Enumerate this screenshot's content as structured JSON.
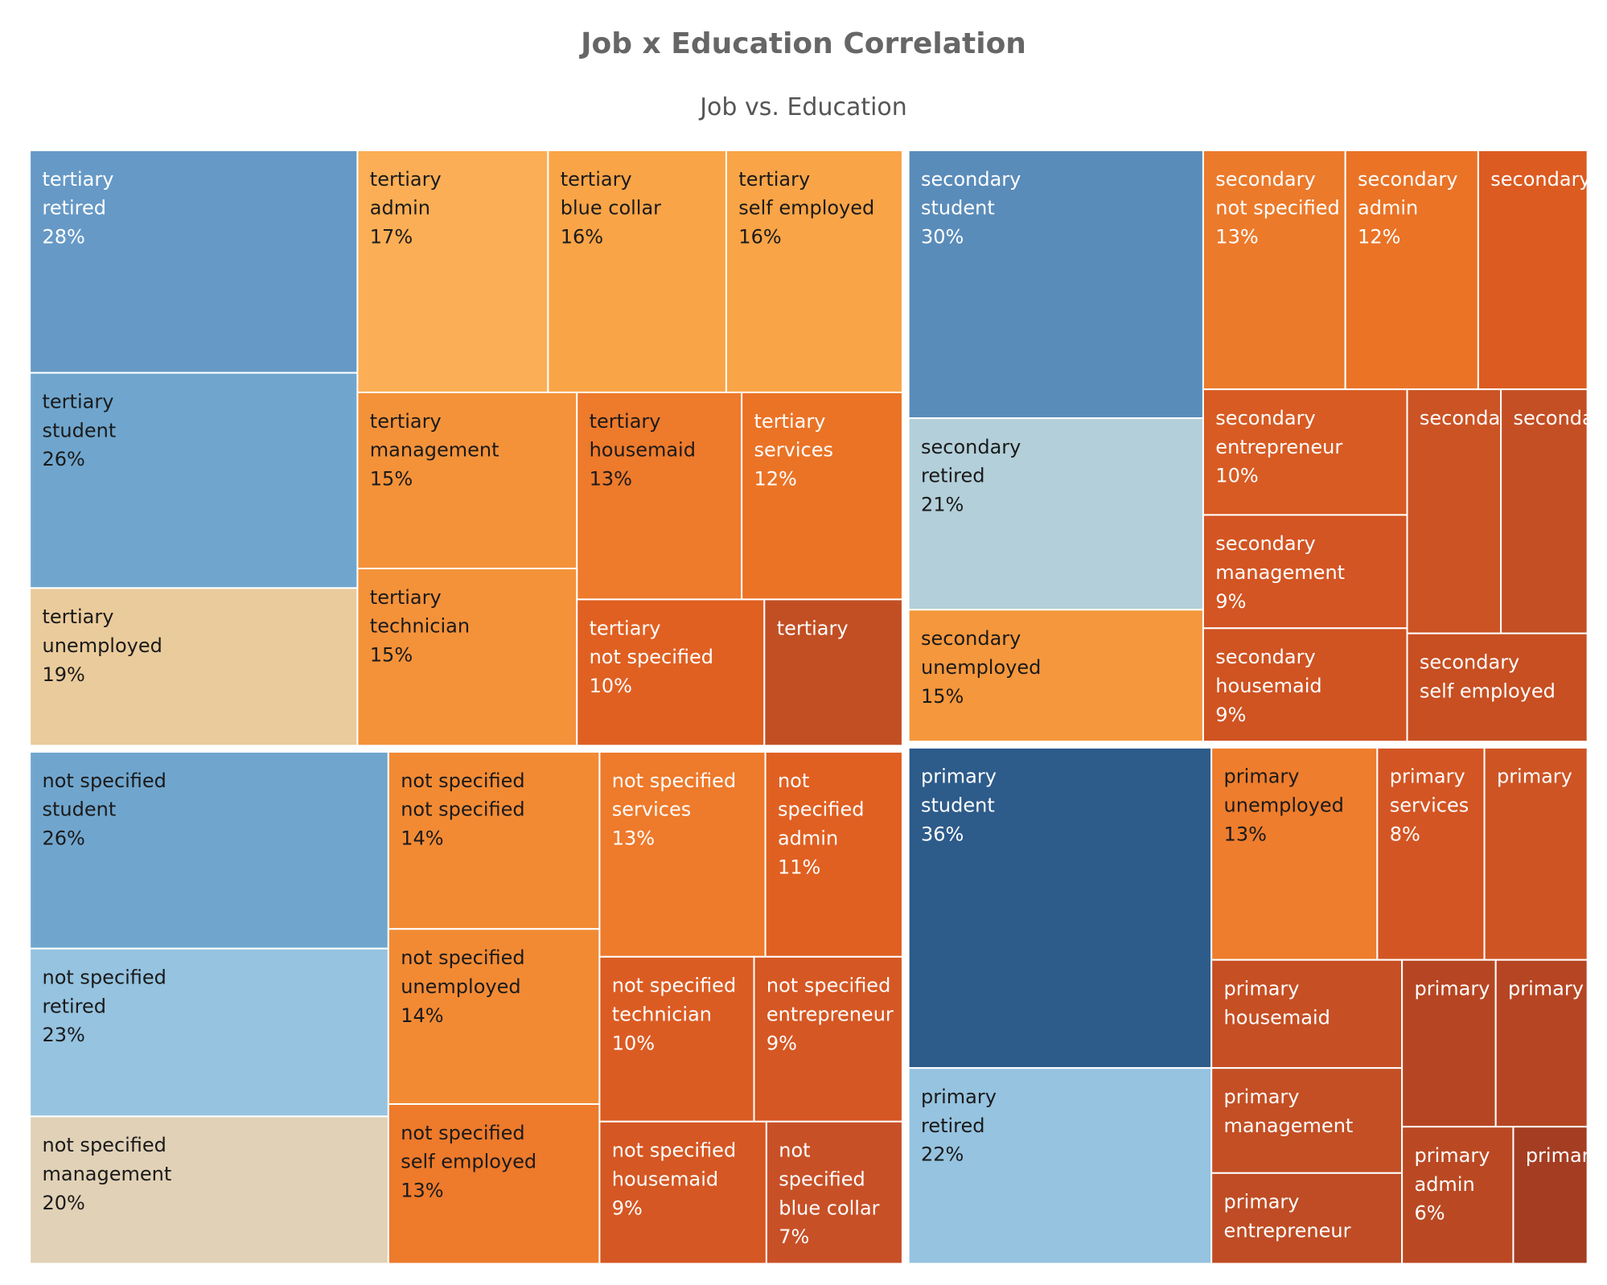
{
  "chart_data": {
    "type": "treemap",
    "title": "Job x Education Correlation",
    "subtitle": "Job vs. Education",
    "groups": [
      {
        "education": "tertiary",
        "cells": [
          {
            "job": "retired",
            "pct": "28%",
            "color": "#6699C6",
            "text": "#FFFFFF"
          },
          {
            "job": "student",
            "pct": "26%",
            "color": "#70A6CE",
            "text": "#1A1A1A"
          },
          {
            "job": "unemployed",
            "pct": "19%",
            "color": "#EACB9B",
            "text": "#1A1A1A"
          },
          {
            "job": "admin",
            "pct": "17%",
            "color": "#FBAE55",
            "text": "#1A1A1A"
          },
          {
            "job": "blue collar",
            "pct": "16%",
            "color": "#F9A447",
            "text": "#1A1A1A"
          },
          {
            "job": "self employed",
            "pct": "16%",
            "color": "#F9A447",
            "text": "#1A1A1A"
          },
          {
            "job": "management",
            "pct": "15%",
            "color": "#F4923A",
            "text": "#1A1A1A"
          },
          {
            "job": "housemaid",
            "pct": "13%",
            "color": "#EE7A2B",
            "text": "#1A1A1A"
          },
          {
            "job": "services",
            "pct": "12%",
            "color": "#EB7326",
            "text": "#FFFFFF"
          },
          {
            "job": "technician",
            "pct": "15%",
            "color": "#F4923A",
            "text": "#1A1A1A"
          },
          {
            "job": "not specified",
            "pct": "10%",
            "color": "#E06022",
            "text": "#FFFFFF"
          },
          {
            "job": "",
            "pct": "",
            "color": "#C24F24",
            "text": "#FFFFFF"
          }
        ]
      },
      {
        "education": "secondary",
        "cells": [
          {
            "job": "student",
            "pct": "30%",
            "color": "#5A8CBA",
            "text": "#FFFFFF"
          },
          {
            "job": "retired",
            "pct": "21%",
            "color": "#B3CFD9",
            "text": "#1A1A1A"
          },
          {
            "job": "unemployed",
            "pct": "15%",
            "color": "#F5973C",
            "text": "#1A1A1A"
          },
          {
            "job": "not specified",
            "pct": "13%",
            "color": "#EC7A2B",
            "text": "#FFFFFF"
          },
          {
            "job": "admin",
            "pct": "12%",
            "color": "#EA7326",
            "text": "#FFFFFF"
          },
          {
            "job": "",
            "pct": "",
            "color": "#DC5B21",
            "text": "#FFFFFF"
          },
          {
            "job": "entrepreneur",
            "pct": "10%",
            "color": "#D85B23",
            "text": "#FFFFFF"
          },
          {
            "job": "management",
            "pct": "9%",
            "color": "#D35523",
            "text": "#FFFFFF"
          },
          {
            "job": "housemaid",
            "pct": "9%",
            "color": "#D05322",
            "text": "#FFFFFF"
          },
          {
            "job": "",
            "pct": "",
            "color": "#CC5324",
            "text": "#FFFFFF"
          },
          {
            "job": "",
            "pct": "",
            "color": "#C44F24",
            "text": "#FFFFFF"
          },
          {
            "job": "self employed",
            "pct": "",
            "color": "#C74F22",
            "text": "#FFFFFF"
          }
        ]
      },
      {
        "education": "not specified",
        "cells": [
          {
            "job": "student",
            "pct": "26%",
            "color": "#70A6CE",
            "text": "#1A1A1A"
          },
          {
            "job": "retired",
            "pct": "23%",
            "color": "#95C3E0",
            "text": "#1A1A1A"
          },
          {
            "job": "management",
            "pct": "20%",
            "color": "#E1D1B6",
            "text": "#1A1A1A"
          },
          {
            "job": "not specified",
            "pct": "14%",
            "color": "#F28A34",
            "text": "#1A1A1A"
          },
          {
            "job": "unemployed",
            "pct": "14%",
            "color": "#F28A34",
            "text": "#1A1A1A"
          },
          {
            "job": "self employed",
            "pct": "13%",
            "color": "#EE7A2B",
            "text": "#1A1A1A"
          },
          {
            "job": "services",
            "pct": "13%",
            "color": "#EE7A2B",
            "text": "#FFFFFF"
          },
          {
            "job": "admin",
            "pct": "11%",
            "color": "#E06022",
            "text": "#FFFFFF"
          },
          {
            "job": "technician",
            "pct": "10%",
            "color": "#DB5C23",
            "text": "#FFFFFF"
          },
          {
            "job": "entrepreneur",
            "pct": "9%",
            "color": "#D55723",
            "text": "#FFFFFF"
          },
          {
            "job": "housemaid",
            "pct": "9%",
            "color": "#D55723",
            "text": "#FFFFFF"
          },
          {
            "job": "blue collar",
            "pct": "7%",
            "color": "#C85027",
            "text": "#FFFFFF"
          }
        ]
      },
      {
        "education": "primary",
        "cells": [
          {
            "job": "student",
            "pct": "36%",
            "color": "#2D5B8A",
            "text": "#FFFFFF"
          },
          {
            "job": "retired",
            "pct": "22%",
            "color": "#95C3E0",
            "text": "#1A1A1A"
          },
          {
            "job": "unemployed",
            "pct": "13%",
            "color": "#EE7D2D",
            "text": "#1A1A1A"
          },
          {
            "job": "services",
            "pct": "8%",
            "color": "#D35523",
            "text": "#FFFFFF"
          },
          {
            "job": "",
            "pct": "",
            "color": "#CE5424",
            "text": "#FFFFFF"
          },
          {
            "job": "housemaid",
            "pct": "",
            "color": "#C64F24",
            "text": "#FFFFFF"
          },
          {
            "job": "management",
            "pct": "",
            "color": "#C44F24",
            "text": "#FFFFFF"
          },
          {
            "job": "entrepreneur",
            "pct": "",
            "color": "#BF4C24",
            "text": "#FFFFFF"
          },
          {
            "job": "",
            "pct": "",
            "color": "#B64623",
            "text": "#FFFFFF"
          },
          {
            "job": "",
            "pct": "",
            "color": "#B64623",
            "text": "#FFFFFF"
          },
          {
            "job": "admin",
            "pct": "6%",
            "color": "#BA4923",
            "text": "#FFFFFF"
          },
          {
            "job": "",
            "pct": "",
            "color": "#A43D22",
            "text": "#FFFFFF"
          }
        ]
      }
    ]
  }
}
